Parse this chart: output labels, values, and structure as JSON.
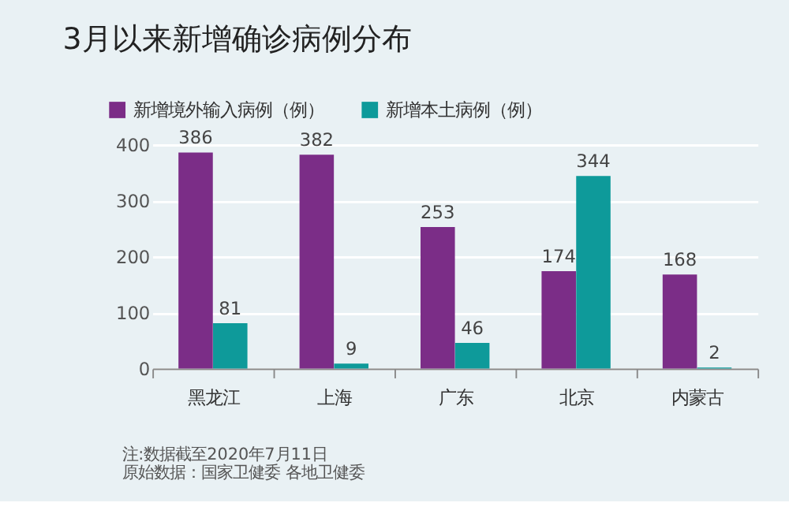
{
  "chart_data": {
    "type": "bar",
    "title": "3月以来新增确诊病例分布",
    "categories": [
      "黑龙江",
      "上海",
      "广东",
      "北京",
      "内蒙古"
    ],
    "series": [
      {
        "name": "新增境外输入病例（例）",
        "color": "#7b2d87",
        "values": [
          386,
          382,
          253,
          174,
          168
        ]
      },
      {
        "name": "新增本土病例（例）",
        "color": "#0e9a9a",
        "values": [
          81,
          9,
          46,
          344,
          2
        ]
      }
    ],
    "ylim": [
      0,
      400
    ],
    "yticks": [
      0,
      100,
      200,
      300,
      400
    ],
    "grid": "y",
    "legend": "top left",
    "data_labels": true,
    "annotations": [
      "注:数据截至2020年7月11日",
      "原始数据：国家卫健委 各地卫健委"
    ]
  }
}
